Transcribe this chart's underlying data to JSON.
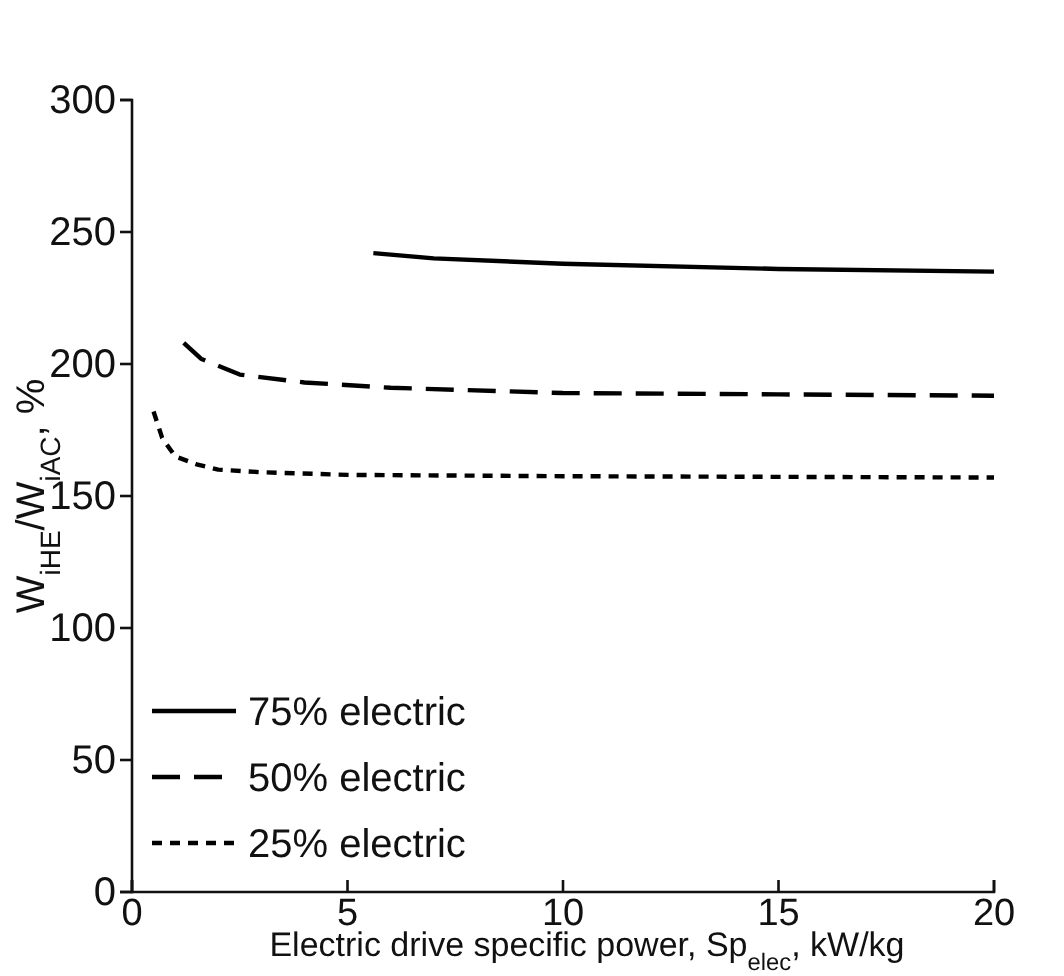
{
  "chart_data": {
    "type": "line",
    "xlabel": "Electric drive specific power, Sp$_{elec}$, kW/kg",
    "ylabel": "W$_{iHE}$/W$_{iAC}$, %",
    "xlim": [
      0,
      20
    ],
    "xticks": [
      0,
      5,
      10,
      15,
      20
    ],
    "ylim": [
      0,
      300
    ],
    "yticks": [
      0,
      50,
      100,
      150,
      200,
      250,
      300
    ],
    "grid": false,
    "legend": "bottom left",
    "marker": "none",
    "series": [
      {
        "name": "75% electric",
        "color": "#000000",
        "line_style": "solid",
        "x": [
          5.6,
          7,
          10,
          15,
          20
        ],
        "values": [
          242,
          240,
          238,
          236,
          235
        ]
      },
      {
        "name": "50% electric",
        "color": "#000000",
        "line_style": "dashed",
        "x": [
          1.2,
          1.6,
          2.5,
          4,
          6,
          10,
          15,
          20
        ],
        "values": [
          208,
          202,
          196,
          193,
          191,
          189,
          188.5,
          188
        ]
      },
      {
        "name": "25% electric",
        "color": "#000000",
        "line_style": "dotted",
        "x": [
          0.5,
          0.7,
          1,
          1.5,
          2,
          3,
          5,
          10,
          20
        ],
        "values": [
          182,
          172,
          165,
          162,
          160,
          159,
          158,
          157.5,
          157
        ]
      }
    ]
  }
}
